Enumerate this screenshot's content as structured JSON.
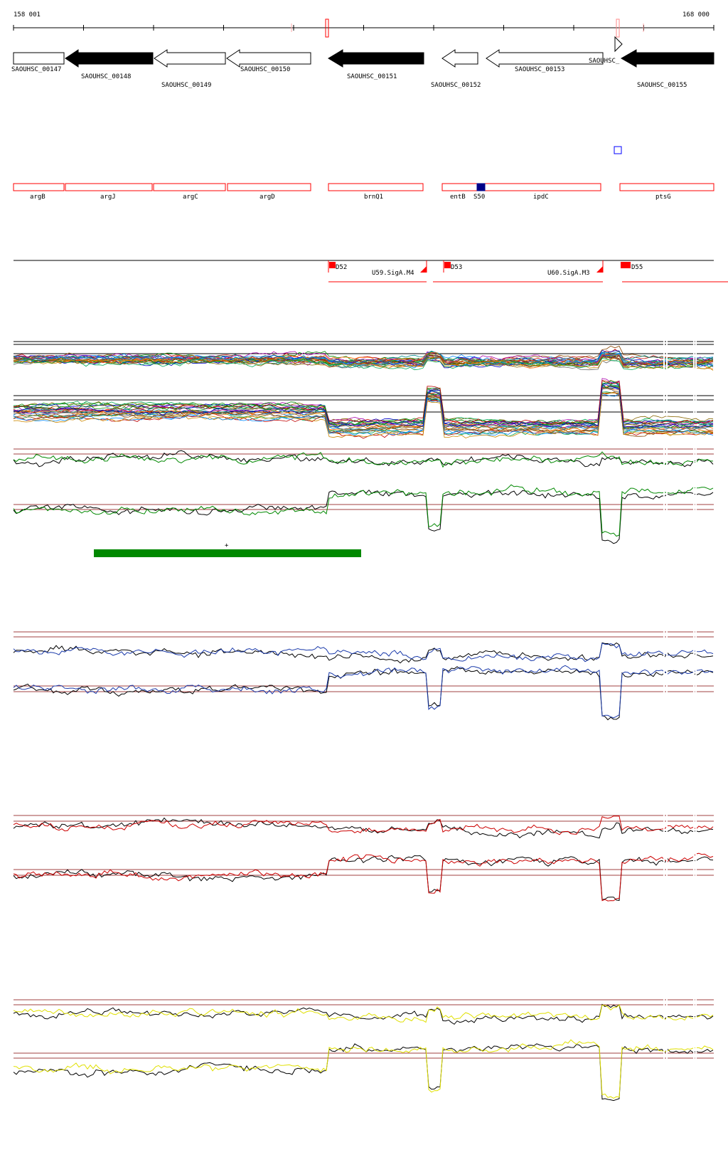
{
  "ruler": {
    "start_label": "158 001",
    "end_label": "168 000"
  },
  "genes": [
    {
      "id": "SAOUHSC_00147",
      "strand": "plus",
      "filled": false,
      "label": "SAOUHSC_00147",
      "label_row": 0
    },
    {
      "id": "SAOUHSC_00148",
      "strand": "minus",
      "filled": true,
      "label": "SAOUHSC_00148",
      "label_row": 1
    },
    {
      "id": "SAOUHSC_00149",
      "strand": "minus",
      "filled": false,
      "label": "SAOUHSC_00149",
      "label_row": 2
    },
    {
      "id": "SAOUHSC_00150",
      "strand": "minus",
      "filled": false,
      "label": "SAOUHSC_00150",
      "label_row": 0
    },
    {
      "id": "SAOUHSC_00151",
      "strand": "minus",
      "filled": true,
      "label": "SAOUHSC_00151",
      "label_row": 1
    },
    {
      "id": "SAOUHSC_00152",
      "strand": "minus",
      "filled": false,
      "label": "SAOUHSC_00152",
      "label_row": 2
    },
    {
      "id": "SAOUHSC_00153",
      "strand": "minus",
      "filled": false,
      "label": "SAOUHSC_00153",
      "label_row": 0
    },
    {
      "id": "SAOUHSC_small",
      "strand": "plus",
      "filled": false,
      "label": "SAOUHSC_",
      "label_row": 3
    },
    {
      "id": "SAOUHSC_00155",
      "strand": "minus",
      "filled": true,
      "label": "SAOUHSC_00155",
      "label_row": 2
    }
  ],
  "gene_names": [
    "argB",
    "argJ",
    "argC",
    "argD",
    "brnQ1",
    "entB",
    "S50",
    "ipdC",
    "ptsG"
  ],
  "operon_features": [
    {
      "label": "D52",
      "kind": "start"
    },
    {
      "label": "U59.SigA.M4",
      "kind": "end"
    },
    {
      "label": "D53",
      "kind": "start"
    },
    {
      "label": "U60.SigA.M3",
      "kind": "end"
    },
    {
      "label": "D55",
      "kind": "start"
    }
  ],
  "colors": {
    "gene_fill": "#000000",
    "gene_outline": "#000000",
    "name_box": "#ff0000",
    "operon": "#ff0000",
    "marker": "#00008b",
    "track_green": "#008800",
    "track_blue": "#1a3aaa",
    "track_red": "#cc0000",
    "track_yellow": "#e0e000",
    "bar_green": "#008800",
    "refline": "#a04040"
  },
  "annotation": {
    "strand_mark": "+"
  },
  "chart_data": {
    "type": "line",
    "title": "",
    "x_range": [
      158001,
      168000
    ],
    "tracks": [
      {
        "color": "green",
        "series": [
          {
            "name": "",
            "values": [
              1,
              1,
              1,
              1,
              1
            ]
          },
          {
            "name": "",
            "values": [
              0.6,
              0.6,
              0.6,
              0.6,
              0.6
            ]
          }
        ]
      },
      {
        "color": "blue",
        "series": []
      },
      {
        "color": "red",
        "series": []
      },
      {
        "color": "yellow",
        "series": []
      }
    ]
  }
}
